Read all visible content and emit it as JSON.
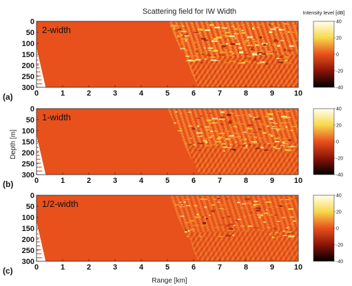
{
  "title": "Scattering field for IW Width",
  "colorbar_title": "Intensity level [dB]",
  "xlabel": "Range [km]",
  "ylabel": "Depth [m]",
  "chart_data": [
    {
      "type": "heatmap",
      "panel": "(a)",
      "label": "2-width",
      "x_ticks": [
        "0",
        "1",
        "2",
        "3",
        "4",
        "5",
        "6",
        "7",
        "8",
        "9",
        "10"
      ],
      "y_ticks": [
        "0",
        "50",
        "100",
        "150",
        "200",
        "250",
        "300"
      ],
      "xlim": [
        0,
        10
      ],
      "ylim": [
        300,
        0
      ],
      "colorbar_ticks": [
        "40",
        "20",
        "0",
        "-20",
        "-40"
      ],
      "clim": [
        -40,
        40
      ],
      "background_level": 0,
      "scattering_onset_km": 5.0,
      "feature_strength": 1.0
    },
    {
      "type": "heatmap",
      "panel": "(b)",
      "label": "1-width",
      "x_ticks": [
        "0",
        "1",
        "2",
        "3",
        "4",
        "5",
        "6",
        "7",
        "8",
        "9",
        "10"
      ],
      "y_ticks": [
        "0",
        "50",
        "100",
        "150",
        "200",
        "250",
        "300"
      ],
      "xlim": [
        0,
        10
      ],
      "ylim": [
        300,
        0
      ],
      "colorbar_ticks": [
        "40",
        "20",
        "0",
        "-20",
        "-40"
      ],
      "clim": [
        -40,
        40
      ],
      "background_level": 0,
      "scattering_onset_km": 5.0,
      "feature_strength": 0.75
    },
    {
      "type": "heatmap",
      "panel": "(c)",
      "label": "1/2-width",
      "x_ticks": [
        "0",
        "1",
        "2",
        "3",
        "4",
        "5",
        "6",
        "7",
        "8",
        "9",
        "10"
      ],
      "y_ticks": [
        "0",
        "50",
        "100",
        "150",
        "200",
        "250",
        "300"
      ],
      "xlim": [
        0,
        10
      ],
      "ylim": [
        300,
        0
      ],
      "colorbar_ticks": [
        "40",
        "20",
        "0",
        "-20",
        "-40"
      ],
      "clim": [
        -40,
        40
      ],
      "background_level": 0,
      "scattering_onset_km": 5.0,
      "feature_strength": 0.5
    }
  ],
  "colors": {
    "background_field": "#e8501c",
    "low": "#000000",
    "mid": "#e8501c",
    "high": "#fffff0"
  }
}
